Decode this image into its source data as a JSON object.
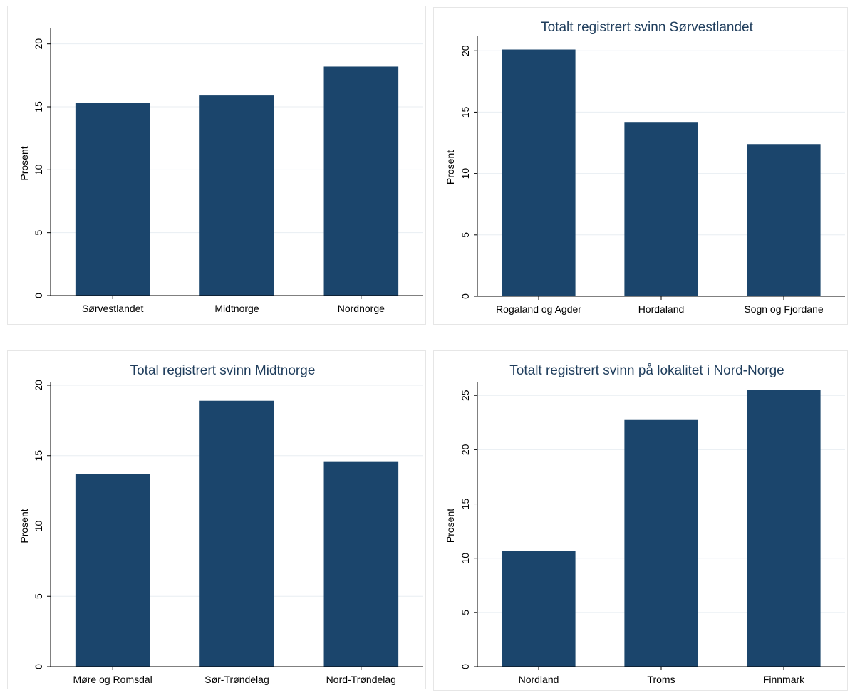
{
  "colors": {
    "bar": "#1b456c",
    "grid": "#e8eef2",
    "axis": "#000000",
    "title": "#1f3d5c"
  },
  "chart_data": [
    {
      "type": "bar",
      "title": "",
      "xlabel": "",
      "ylabel": "Prosent",
      "categories": [
        "Sørvestlandet",
        "Midtnorge",
        "Nordnorge"
      ],
      "values": [
        15.3,
        15.9,
        18.2
      ],
      "ylim": [
        0,
        21
      ],
      "yticks": [
        0,
        5,
        10,
        15,
        20
      ],
      "grid": true
    },
    {
      "type": "bar",
      "title": "Totalt registrert svinn Sørvestlandet",
      "xlabel": "",
      "ylabel": "Prosent",
      "categories": [
        "Rogaland og Agder",
        "Hordaland",
        "Sogn og Fjordane"
      ],
      "values": [
        20.1,
        14.2,
        12.4
      ],
      "ylim": [
        0,
        21
      ],
      "yticks": [
        0,
        5,
        10,
        15,
        20
      ],
      "grid": true
    },
    {
      "type": "bar",
      "title": "Total registrert svinn Midtnorge",
      "xlabel": "",
      "ylabel": "Prosent",
      "categories": [
        "Møre og Romsdal",
        "Sør-Trøndelag",
        "Nord-Trøndelag"
      ],
      "values": [
        13.7,
        18.9,
        14.6
      ],
      "ylim": [
        0,
        20
      ],
      "yticks": [
        0,
        5,
        10,
        15,
        20
      ],
      "grid": true
    },
    {
      "type": "bar",
      "title": "Totalt registrert svinn på lokalitet i Nord-Norge",
      "xlabel": "",
      "ylabel": "Prosent",
      "categories": [
        "Nordland",
        "Troms",
        "Finnmark"
      ],
      "values": [
        10.7,
        22.8,
        25.5
      ],
      "ylim": [
        0,
        26
      ],
      "yticks": [
        0,
        5,
        10,
        15,
        20,
        25
      ],
      "grid": true
    }
  ]
}
